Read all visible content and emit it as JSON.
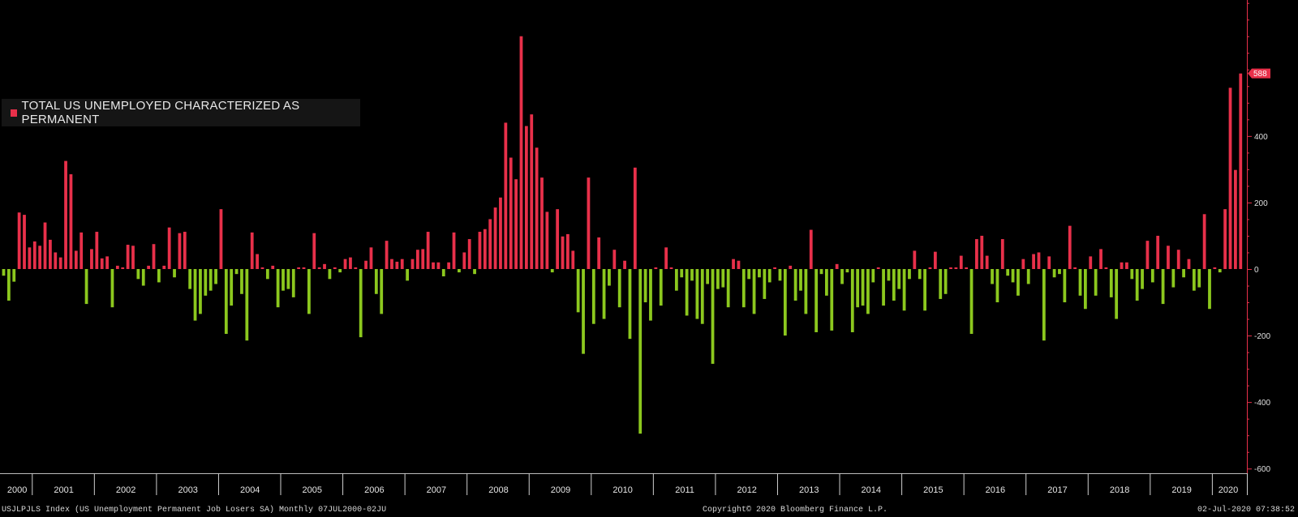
{
  "legend": {
    "label": "TOTAL US UNEMPLOYED CHARACTERIZED AS PERMANENT",
    "color": "#e8304a"
  },
  "last_value_label": "588",
  "footer": {
    "left": "USJLPJLS Index (US Unemployment Permanent Job Losers SA)  Monthly 07JUL2000-02JU",
    "middle": "Copyright© 2020 Bloomberg Finance L.P.",
    "right": "02-Jul-2020 07:38:52"
  },
  "chart_data": {
    "type": "bar",
    "title": "",
    "xlabel": "",
    "ylabel": "",
    "ylim": [
      -600,
      800
    ],
    "yticks": [
      -600,
      -400,
      -200,
      0,
      200,
      400
    ],
    "positive_color": "#e8304a",
    "negative_color": "#8cc81e",
    "axis_color": "#e8304a",
    "x_labels": [
      "2000",
      "2001",
      "2002",
      "2003",
      "2004",
      "2005",
      "2006",
      "2007",
      "2008",
      "2009",
      "2010",
      "2011",
      "2012",
      "2013",
      "2014",
      "2015",
      "2016",
      "2017",
      "2018",
      "2019",
      "2020"
    ],
    "start": "2000-07",
    "end": "2020-06",
    "values": [
      40,
      85,
      -55,
      -20,
      -95,
      -38,
      170,
      163,
      65,
      83,
      70,
      140,
      88,
      50,
      35,
      325,
      285,
      55,
      110,
      -105,
      60,
      112,
      32,
      38,
      -115,
      10,
      5,
      73,
      70,
      -30,
      -50,
      10,
      75,
      -40,
      10,
      125,
      -25,
      108,
      112,
      -60,
      -155,
      -135,
      -80,
      -65,
      -45,
      180,
      -195,
      -110,
      -15,
      -75,
      -215,
      110,
      45,
      5,
      -30,
      10,
      -115,
      -65,
      -60,
      -85,
      5,
      5,
      -135,
      108,
      5,
      15,
      -30,
      5,
      -10,
      30,
      35,
      5,
      -205,
      25,
      65,
      -75,
      -135,
      85,
      30,
      22,
      30,
      -35,
      30,
      58,
      60,
      112,
      20,
      20,
      -22,
      20,
      110,
      -10,
      50,
      90,
      -15,
      112,
      120,
      150,
      185,
      215,
      440,
      335,
      270,
      700,
      430,
      465,
      365,
      275,
      172,
      -10,
      180,
      98,
      105,
      55,
      -130,
      -255,
      275,
      -165,
      95,
      -150,
      -50,
      58,
      -115,
      25,
      -210,
      305,
      -495,
      -100,
      -155,
      5,
      -110,
      65,
      5,
      -65,
      -25,
      -140,
      -35,
      -150,
      -165,
      -45,
      -285,
      -60,
      -55,
      -115,
      30,
      25,
      -115,
      -30,
      -135,
      -25,
      -90,
      -40,
      5,
      -35,
      -200,
      10,
      -95,
      -65,
      -135,
      118,
      -190,
      -15,
      -80,
      -185,
      15,
      -45,
      -10,
      -190,
      -115,
      -110,
      -135,
      -40,
      5,
      -110,
      -35,
      -95,
      -60,
      -125,
      -30,
      55,
      -30,
      -125,
      5,
      52,
      -90,
      -75,
      5,
      5,
      40,
      5,
      -195,
      90,
      100,
      40,
      -45,
      -100,
      90,
      -20,
      -40,
      -80,
      30,
      -45,
      45,
      50,
      -215,
      38,
      -25,
      -15,
      -100,
      130,
      5,
      -80,
      -120,
      38,
      -80,
      60,
      5,
      -85,
      -150,
      20,
      20,
      -30,
      -95,
      -60,
      85,
      -40,
      100,
      -105,
      70,
      -55,
      58,
      -25,
      30,
      -65,
      -55,
      165,
      -120,
      5,
      -10,
      180,
      545,
      298,
      588
    ]
  }
}
